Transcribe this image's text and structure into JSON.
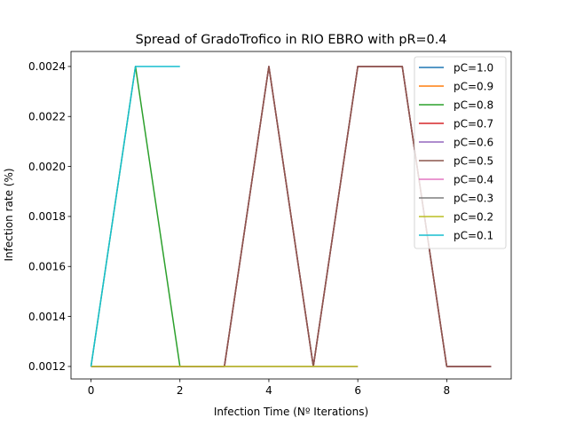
{
  "chart_data": {
    "type": "line",
    "title": "Spread of GradoTrofico in RIO EBRO with pR=0.4",
    "xlabel": "Infection Time (Nº Iterations)",
    "ylabel": "Infection rate (%)",
    "xlim": [
      -0.45,
      9.45
    ],
    "ylim": [
      0.00115,
      0.00246
    ],
    "xticks": [
      0,
      2,
      4,
      6,
      8
    ],
    "yticks": [
      0.0012,
      0.0014,
      0.0016,
      0.0018,
      0.002,
      0.0022,
      0.0024
    ],
    "ytick_labels": [
      "0.0012",
      "0.0014",
      "0.0016",
      "0.0018",
      "0.0020",
      "0.0022",
      "0.0024"
    ],
    "grid": false,
    "legend_position": "top-right",
    "series": [
      {
        "name": "pC=1.0",
        "color": "#1f77b4",
        "x": [
          0,
          1,
          2,
          3,
          4,
          5,
          6,
          7,
          8,
          9
        ],
        "y": [
          0.0012,
          0.0012,
          0.0012,
          0.0012,
          0.0024,
          0.0012,
          0.0024,
          0.0024,
          0.0012,
          0.0012
        ]
      },
      {
        "name": "pC=0.9",
        "color": "#ff7f0e",
        "x": [
          0,
          1,
          2,
          3,
          4,
          5,
          6,
          7,
          8,
          9
        ],
        "y": [
          0.0012,
          0.0012,
          0.0012,
          0.0012,
          0.0024,
          0.0012,
          0.0024,
          0.0024,
          0.0012,
          0.0012
        ]
      },
      {
        "name": "pC=0.8",
        "color": "#2ca02c",
        "x": [
          0,
          1,
          2
        ],
        "y": [
          0.0012,
          0.0024,
          0.0012
        ]
      },
      {
        "name": "pC=0.7",
        "color": "#d62728",
        "x": [
          0,
          1,
          2,
          3,
          4,
          5,
          6,
          7,
          8,
          9
        ],
        "y": [
          0.0012,
          0.0012,
          0.0012,
          0.0012,
          0.0024,
          0.0012,
          0.0024,
          0.0024,
          0.0012,
          0.0012
        ]
      },
      {
        "name": "pC=0.6",
        "color": "#9467bd",
        "x": [
          0,
          1,
          2,
          3,
          4,
          5,
          6,
          7,
          8,
          9
        ],
        "y": [
          0.0012,
          0.0012,
          0.0012,
          0.0012,
          0.0024,
          0.0012,
          0.0024,
          0.0024,
          0.0012,
          0.0012
        ]
      },
      {
        "name": "pC=0.5",
        "color": "#8c564b",
        "x": [
          0,
          1,
          2,
          3,
          4,
          5,
          6,
          7,
          8,
          9
        ],
        "y": [
          0.0012,
          0.0012,
          0.0012,
          0.0012,
          0.0024,
          0.0012,
          0.0024,
          0.0024,
          0.0012,
          0.0012
        ]
      },
      {
        "name": "pC=0.4",
        "color": "#e377c2",
        "x": [
          0,
          1,
          2,
          3,
          4,
          5,
          6
        ],
        "y": [
          0.0012,
          0.0012,
          0.0012,
          0.0012,
          0.0012,
          0.0012,
          0.0012
        ]
      },
      {
        "name": "pC=0.3",
        "color": "#7f7f7f",
        "x": [
          0,
          1,
          2,
          3,
          4,
          5,
          6
        ],
        "y": [
          0.0012,
          0.0012,
          0.0012,
          0.0012,
          0.0012,
          0.0012,
          0.0012
        ]
      },
      {
        "name": "pC=0.2",
        "color": "#bcbd22",
        "x": [
          0,
          1,
          2,
          3,
          4,
          5,
          6
        ],
        "y": [
          0.0012,
          0.0012,
          0.0012,
          0.0012,
          0.0012,
          0.0012,
          0.0012
        ]
      },
      {
        "name": "pC=0.1",
        "color": "#17becf",
        "x": [
          0,
          1,
          2
        ],
        "y": [
          0.0012,
          0.0024,
          0.0024
        ]
      }
    ]
  }
}
